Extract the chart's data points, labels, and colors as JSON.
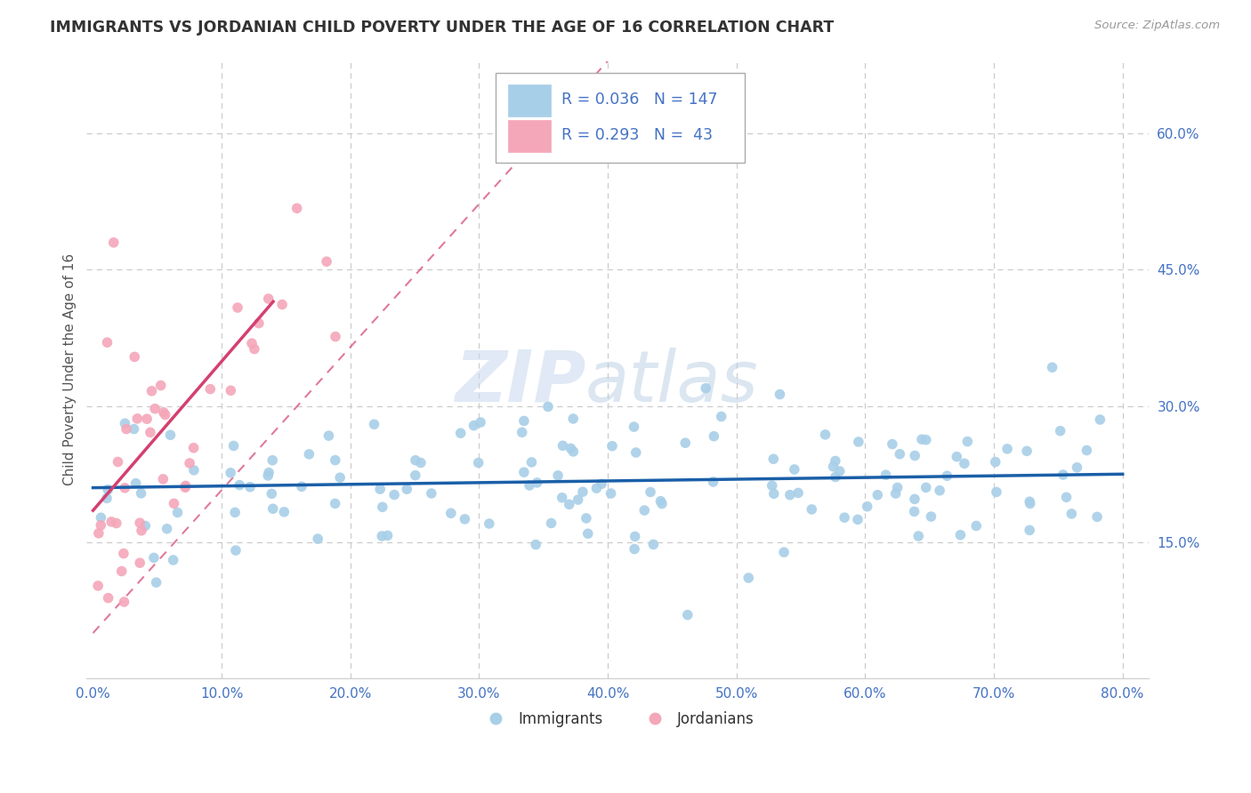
{
  "title": "IMMIGRANTS VS JORDANIAN CHILD POVERTY UNDER THE AGE OF 16 CORRELATION CHART",
  "source": "Source: ZipAtlas.com",
  "ylabel": "Child Poverty Under the Age of 16",
  "xlim": [
    -0.005,
    0.82
  ],
  "ylim": [
    0.0,
    0.68
  ],
  "xticks": [
    0.0,
    0.1,
    0.2,
    0.3,
    0.4,
    0.5,
    0.6,
    0.7,
    0.8
  ],
  "yticks": [
    0.15,
    0.3,
    0.45,
    0.6
  ],
  "ytick_labels": [
    "15.0%",
    "30.0%",
    "45.0%",
    "60.0%"
  ],
  "xtick_labels": [
    "0.0%",
    "10.0%",
    "20.0%",
    "30.0%",
    "40.0%",
    "50.0%",
    "60.0%",
    "70.0%",
    "80.0%"
  ],
  "blue_color": "#a8cfe8",
  "pink_color": "#f4a7b9",
  "blue_line_color": "#1a5fa8",
  "pink_line_color": "#d44070",
  "R_blue": 0.036,
  "N_blue": 147,
  "R_pink": 0.293,
  "N_pink": 43,
  "watermark_zip": "ZIP",
  "watermark_atlas": "atlas",
  "grid_color": "#cccccc",
  "background_color": "#ffffff",
  "legend_labels": [
    "Immigrants",
    "Jordanians"
  ],
  "title_color": "#333333",
  "source_color": "#999999",
  "tick_color": "#4472c4",
  "ylabel_color": "#555555"
}
